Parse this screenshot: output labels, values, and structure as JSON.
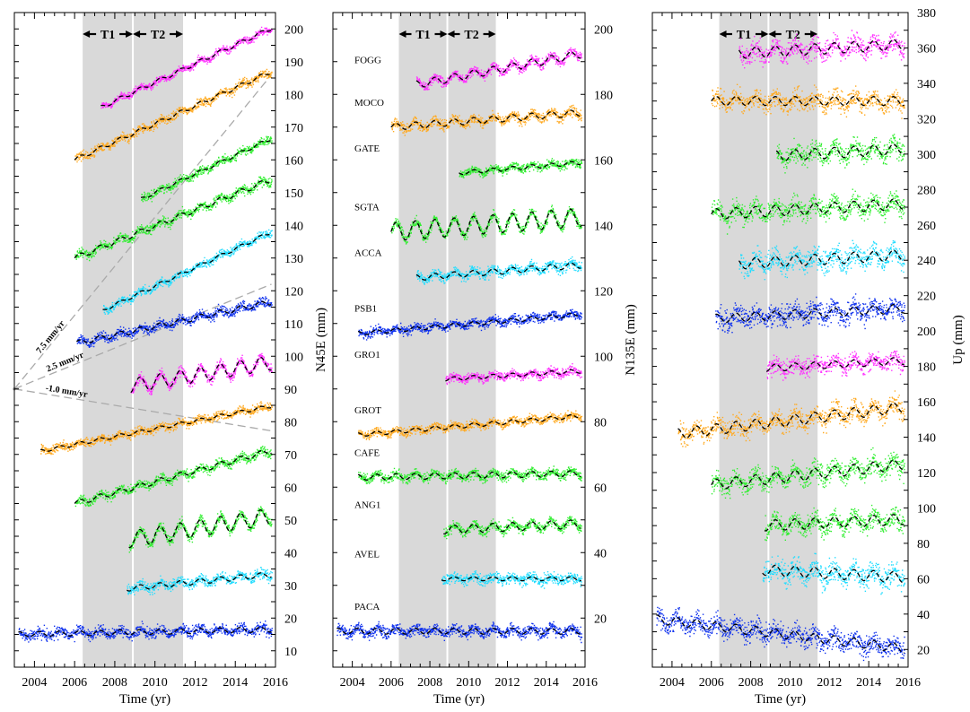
{
  "figure": {
    "shading_color": "#d9d9d9",
    "period_labels": [
      "T1",
      "T2"
    ]
  },
  "chart_data": [
    {
      "type": "scatter",
      "xlabel": "Time (yr)",
      "ylabel": "N45E (mm)",
      "xlim": [
        2003,
        2016
      ],
      "ylim": [
        5,
        205
      ],
      "xticks": [
        2004,
        2006,
        2008,
        2010,
        2012,
        2014,
        2016
      ],
      "yticks": [
        10,
        20,
        30,
        40,
        50,
        60,
        70,
        80,
        90,
        100,
        110,
        120,
        130,
        140,
        150,
        160,
        170,
        180,
        190,
        200
      ],
      "y_axis_side": "right",
      "shaded_interval": [
        2006.4,
        2011.4
      ],
      "divider": 2008.9,
      "rate_lines": [
        {
          "label": "7.5 mm/yr",
          "from": [
            2003.0,
            90
          ],
          "to": [
            2015.8,
            186
          ]
        },
        {
          "label": "2.5 mm/yr",
          "from": [
            2003.0,
            90
          ],
          "to": [
            2015.8,
            122
          ]
        },
        {
          "label": "-1.0 mm/yr",
          "from": [
            2003.0,
            90
          ],
          "to": [
            2015.8,
            77.2
          ]
        }
      ],
      "series": [
        {
          "color": "#ff33ff",
          "start": 2007.3,
          "end": 2015.8,
          "y0": 176,
          "slope": 2.85,
          "amp": 0.6,
          "noise": 0.8
        },
        {
          "color": "#ffaa22",
          "start": 2006.0,
          "end": 2015.8,
          "y0": 160,
          "slope": 2.75,
          "amp": 0.6,
          "noise": 1.0
        },
        {
          "color": "#33ee33",
          "start": 2009.3,
          "end": 2015.8,
          "y0": 148,
          "slope": 2.85,
          "amp": 0.5,
          "noise": 0.9
        },
        {
          "color": "#33ee33",
          "start": 2006.0,
          "end": 2015.8,
          "y0": 130,
          "slope": 2.45,
          "amp": 0.8,
          "noise": 1.0
        },
        {
          "color": "#22ddff",
          "start": 2007.4,
          "end": 2015.8,
          "y0": 114,
          "slope": 2.85,
          "amp": 0.5,
          "noise": 0.9
        },
        {
          "color": "#1133ee",
          "start": 2006.1,
          "end": 2015.8,
          "y0": 104,
          "slope": 1.3,
          "amp": 0.8,
          "noise": 1.1
        },
        {
          "color": "#ff33ff",
          "start": 2008.8,
          "end": 2015.8,
          "y0": 91,
          "slope": 1.0,
          "amp": 2.2,
          "noise": 1.0
        },
        {
          "color": "#ffaa22",
          "start": 2004.3,
          "end": 2015.8,
          "y0": 71,
          "slope": 1.2,
          "amp": 0.5,
          "noise": 0.9
        },
        {
          "color": "#33ee33",
          "start": 2006.0,
          "end": 2015.8,
          "y0": 55,
          "slope": 1.65,
          "amp": 0.8,
          "noise": 1.0
        },
        {
          "color": "#33ee33",
          "start": 2008.7,
          "end": 2015.8,
          "y0": 44,
          "slope": 1.0,
          "amp": 2.5,
          "noise": 1.0
        },
        {
          "color": "#22ddff",
          "start": 2008.6,
          "end": 2015.8,
          "y0": 29,
          "slope": 0.6,
          "amp": 0.8,
          "noise": 1.2
        },
        {
          "color": "#1133ee",
          "start": 2003.2,
          "end": 2015.8,
          "y0": 15,
          "slope": 0.12,
          "amp": 0.8,
          "noise": 1.2
        }
      ]
    },
    {
      "type": "scatter",
      "xlabel": "Time (yr)",
      "ylabel": "N135E (mm)",
      "xlim": [
        2003,
        2016
      ],
      "ylim": [
        5,
        205
      ],
      "xticks": [
        2004,
        2006,
        2008,
        2010,
        2012,
        2014,
        2016
      ],
      "yticks": [
        20,
        40,
        60,
        80,
        100,
        120,
        140,
        160,
        180,
        200
      ],
      "y_axis_side": "right",
      "shaded_interval": [
        2006.4,
        2011.4
      ],
      "divider": 2008.9,
      "series": [
        {
          "name": "FOGG",
          "color": "#ff33ff",
          "start": 2007.3,
          "end": 2015.8,
          "y0": 183,
          "slope": 1.1,
          "amp": 1.2,
          "noise": 1.0
        },
        {
          "name": "MOCO",
          "color": "#ffaa22",
          "start": 2006.0,
          "end": 2015.8,
          "y0": 170,
          "slope": 0.45,
          "amp": 1.0,
          "noise": 1.1
        },
        {
          "name": "GATE",
          "color": "#33ee33",
          "start": 2009.5,
          "end": 2015.8,
          "y0": 156,
          "slope": 0.5,
          "amp": 0.6,
          "noise": 0.9
        },
        {
          "name": "SGTA",
          "color": "#33ee33",
          "start": 2006.0,
          "end": 2015.8,
          "y0": 138,
          "slope": 0.45,
          "amp": 2.8,
          "noise": 1.0
        },
        {
          "name": "ACCA",
          "color": "#22ddff",
          "start": 2007.3,
          "end": 2015.8,
          "y0": 124,
          "slope": 0.45,
          "amp": 0.9,
          "noise": 1.1
        },
        {
          "name": "PSB1",
          "color": "#1133ee",
          "start": 2004.3,
          "end": 2015.8,
          "y0": 107,
          "slope": 0.5,
          "amp": 0.6,
          "noise": 1.0
        },
        {
          "name": "GRO1",
          "color": "#ff33ff",
          "start": 2008.8,
          "end": 2015.8,
          "y0": 93,
          "slope": 0.35,
          "amp": 0.6,
          "noise": 1.0
        },
        {
          "name": "GROT",
          "color": "#ffaa22",
          "start": 2004.3,
          "end": 2015.8,
          "y0": 76,
          "slope": 0.5,
          "amp": 0.6,
          "noise": 0.9
        },
        {
          "name": "CAFE",
          "color": "#33ee33",
          "start": 2004.3,
          "end": 2015.8,
          "y0": 63,
          "slope": 0.1,
          "amp": 0.9,
          "noise": 1.0
        },
        {
          "name": "ANG1",
          "color": "#33ee33",
          "start": 2008.7,
          "end": 2015.8,
          "y0": 47,
          "slope": 0.25,
          "amp": 1.3,
          "noise": 1.1
        },
        {
          "name": "AVEL",
          "color": "#22ddff",
          "start": 2008.6,
          "end": 2015.8,
          "y0": 32,
          "slope": 0.0,
          "amp": 0.6,
          "noise": 1.2
        },
        {
          "name": "PACA",
          "color": "#1133ee",
          "start": 2003.2,
          "end": 2015.8,
          "y0": 16,
          "slope": 0.0,
          "amp": 0.9,
          "noise": 1.2
        }
      ]
    },
    {
      "type": "scatter",
      "xlabel": "Time (yr)",
      "ylabel": "Up (mm)",
      "xlim": [
        2003,
        2016
      ],
      "ylim": [
        10,
        380
      ],
      "xticks": [
        2004,
        2006,
        2008,
        2010,
        2012,
        2014,
        2016
      ],
      "yticks": [
        20,
        40,
        60,
        80,
        100,
        120,
        140,
        160,
        180,
        200,
        220,
        240,
        260,
        280,
        300,
        320,
        340,
        360,
        380
      ],
      "y_axis_side": "right",
      "shaded_interval": [
        2006.4,
        2011.4
      ],
      "divider": 2008.9,
      "series": [
        {
          "color": "#ff33ff",
          "start": 2007.4,
          "end": 2015.8,
          "y0": 357,
          "slope": 0.6,
          "amp": 3.0,
          "noise": 4.0
        },
        {
          "color": "#ffaa22",
          "start": 2006.0,
          "end": 2015.8,
          "y0": 330,
          "slope": 0.0,
          "amp": 2.5,
          "noise": 4.0
        },
        {
          "color": "#33ee33",
          "start": 2009.3,
          "end": 2015.8,
          "y0": 299,
          "slope": 0.6,
          "amp": 3.0,
          "noise": 4.0
        },
        {
          "color": "#33ee33",
          "start": 2006.0,
          "end": 2015.8,
          "y0": 266,
          "slope": 0.6,
          "amp": 3.0,
          "noise": 4.0
        },
        {
          "color": "#22ddff",
          "start": 2007.4,
          "end": 2015.8,
          "y0": 238,
          "slope": 0.6,
          "amp": 3.0,
          "noise": 4.5
        },
        {
          "color": "#1133ee",
          "start": 2006.2,
          "end": 2015.8,
          "y0": 207,
          "slope": 0.6,
          "amp": 2.5,
          "noise": 4.5
        },
        {
          "color": "#ff33ff",
          "start": 2008.8,
          "end": 2015.8,
          "y0": 179,
          "slope": 0.6,
          "amp": 2.0,
          "noise": 3.5
        },
        {
          "color": "#ffaa22",
          "start": 2004.3,
          "end": 2015.8,
          "y0": 142,
          "slope": 1.3,
          "amp": 3.0,
          "noise": 4.0
        },
        {
          "color": "#33ee33",
          "start": 2006.0,
          "end": 2015.8,
          "y0": 113,
          "slope": 1.2,
          "amp": 3.0,
          "noise": 4.0
        },
        {
          "color": "#33ee33",
          "start": 2008.7,
          "end": 2015.8,
          "y0": 90,
          "slope": 0.5,
          "amp": 3.0,
          "noise": 4.0
        },
        {
          "color": "#22ddff",
          "start": 2008.6,
          "end": 2015.8,
          "y0": 65,
          "slope": -0.6,
          "amp": 3.0,
          "noise": 4.5
        },
        {
          "color": "#1133ee",
          "start": 2003.2,
          "end": 2015.8,
          "y0": 37,
          "slope": -1.3,
          "amp": 2.5,
          "noise": 4.0
        }
      ]
    }
  ]
}
